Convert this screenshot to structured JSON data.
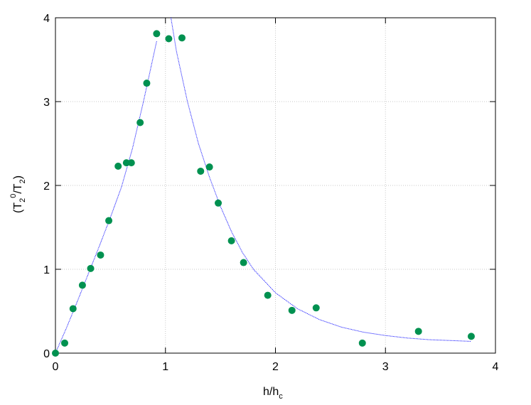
{
  "chart_data": {
    "type": "scatter",
    "x_label": [
      {
        "text": "h/h"
      },
      {
        "text": "c",
        "shift": "sub"
      }
    ],
    "y_label": [
      {
        "text": "(T"
      },
      {
        "text": "2",
        "shift": "sub"
      },
      {
        "text": "0",
        "shift": "sup"
      },
      {
        "text": "/T"
      },
      {
        "text": "2",
        "shift": "sub"
      },
      {
        "text": ")"
      }
    ],
    "xlim": [
      0,
      4
    ],
    "ylim": [
      0,
      4
    ],
    "xticks": [
      0,
      1,
      2,
      3,
      4
    ],
    "yticks": [
      0,
      1,
      2,
      3,
      4
    ],
    "grid": true,
    "series": [
      {
        "type": "scatter",
        "color": "#009150",
        "x": [
          0,
          0.084,
          0.16,
          0.245,
          0.32,
          0.41,
          0.485,
          0.57,
          0.645,
          0.69,
          0.77,
          0.83,
          0.92,
          1.03,
          1.15,
          1.32,
          1.4,
          1.48,
          1.6,
          1.71,
          1.93,
          2.15,
          2.37,
          2.79,
          3.3,
          3.78
        ],
        "values": [
          0,
          0.12,
          0.53,
          0.81,
          1.01,
          1.17,
          1.58,
          2.23,
          2.27,
          2.27,
          2.75,
          3.22,
          3.81,
          3.75,
          3.76,
          2.17,
          2.22,
          1.79,
          1.34,
          1.08,
          0.69,
          0.51,
          0.54,
          0.12,
          0.26,
          0.2
        ]
      },
      {
        "type": "line",
        "color": "#0000ff",
        "x": [
          0,
          0.1,
          0.2,
          0.3,
          0.4,
          0.5,
          0.6,
          0.7,
          0.8,
          0.9,
          0.92,
          null,
          1.05,
          1.1,
          1.2,
          1.3,
          1.4,
          1.5,
          1.6,
          1.7,
          1.8,
          2.0,
          2.2,
          2.4,
          2.6,
          2.8,
          3.0,
          3.2,
          3.4,
          3.6,
          3.78
        ],
        "values": [
          0,
          0.3,
          0.62,
          0.95,
          1.28,
          1.62,
          1.98,
          2.44,
          3.0,
          3.6,
          3.72,
          null,
          4.0,
          3.6,
          3.0,
          2.5,
          2.1,
          1.75,
          1.45,
          1.2,
          1.0,
          0.72,
          0.53,
          0.4,
          0.31,
          0.25,
          0.21,
          0.18,
          0.16,
          0.15,
          0.14
        ]
      }
    ]
  }
}
